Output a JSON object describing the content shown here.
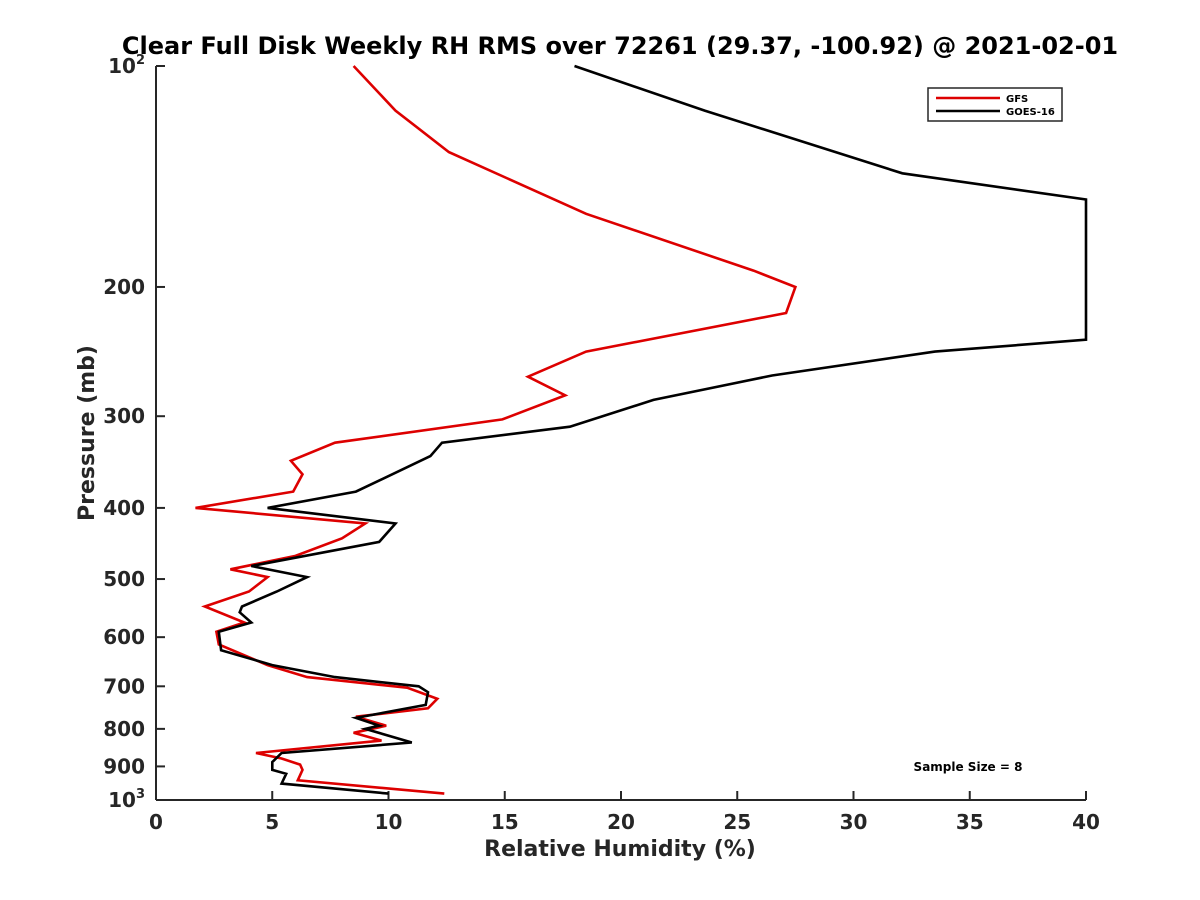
{
  "chart_data": {
    "type": "line",
    "title": "Clear Full Disk Weekly RH RMS over 72261 (29.37, -100.92) @ 2021-02-01",
    "xlabel": "Relative Humidity (%)",
    "ylabel": "Pressure (mb)",
    "xlim": [
      0,
      40
    ],
    "ylim": [
      100,
      1000
    ],
    "y_scale": "log",
    "y_reversed": true,
    "x_ticks": [
      0,
      5,
      10,
      15,
      20,
      25,
      30,
      35,
      40
    ],
    "y_ticks": [
      {
        "value": 100,
        "label": "10",
        "sup": "2"
      },
      {
        "value": 200,
        "label": "200"
      },
      {
        "value": 300,
        "label": "300"
      },
      {
        "value": 400,
        "label": "400"
      },
      {
        "value": 500,
        "label": "500"
      },
      {
        "value": 600,
        "label": "600"
      },
      {
        "value": 700,
        "label": "700"
      },
      {
        "value": 800,
        "label": "800"
      },
      {
        "value": 900,
        "label": "900"
      },
      {
        "value": 1000,
        "label": "10",
        "sup": "3"
      }
    ],
    "grid": false,
    "legend_position": "top-right",
    "series": [
      {
        "name": "GFS",
        "color": "#dd0000",
        "points": [
          [
            8.5,
            100
          ],
          [
            10.3,
            115
          ],
          [
            12.6,
            131
          ],
          [
            18.5,
            159
          ],
          [
            25.7,
            190
          ],
          [
            27.5,
            200
          ],
          [
            27.1,
            217
          ],
          [
            18.5,
            245
          ],
          [
            16.0,
            265
          ],
          [
            17.6,
            281
          ],
          [
            14.9,
            303
          ],
          [
            7.7,
            326
          ],
          [
            5.8,
            345
          ],
          [
            6.3,
            360
          ],
          [
            5.9,
            380
          ],
          [
            1.7,
            400
          ],
          [
            9.0,
            420
          ],
          [
            8.0,
            440
          ],
          [
            6.0,
            465
          ],
          [
            3.2,
            485
          ],
          [
            4.8,
            497
          ],
          [
            4.0,
            520
          ],
          [
            2.1,
            545
          ],
          [
            3.8,
            573
          ],
          [
            2.6,
            590
          ],
          [
            2.7,
            614
          ],
          [
            4.8,
            655
          ],
          [
            6.5,
            680
          ],
          [
            10.8,
            703
          ],
          [
            12.1,
            728
          ],
          [
            11.7,
            750
          ],
          [
            8.6,
            770
          ],
          [
            9.9,
            792
          ],
          [
            8.5,
            810
          ],
          [
            9.7,
            830
          ],
          [
            4.3,
            863
          ],
          [
            5.4,
            878
          ],
          [
            6.2,
            895
          ],
          [
            6.3,
            910
          ],
          [
            6.1,
            940
          ],
          [
            12.4,
            980
          ]
        ]
      },
      {
        "name": "GOES-16",
        "color": "#000000",
        "points": [
          [
            18.0,
            100
          ],
          [
            23.6,
            115
          ],
          [
            32.1,
            140
          ],
          [
            40.0,
            152
          ],
          [
            40.0,
            236
          ],
          [
            33.5,
            245
          ],
          [
            26.5,
            264
          ],
          [
            21.4,
            285
          ],
          [
            17.8,
            310
          ],
          [
            12.3,
            326
          ],
          [
            11.8,
            340
          ],
          [
            8.6,
            380
          ],
          [
            4.8,
            400
          ],
          [
            10.3,
            420
          ],
          [
            9.6,
            445
          ],
          [
            4.1,
            480
          ],
          [
            6.5,
            497
          ],
          [
            5.2,
            520
          ],
          [
            3.7,
            545
          ],
          [
            3.6,
            555
          ],
          [
            4.1,
            573
          ],
          [
            2.7,
            590
          ],
          [
            2.8,
            625
          ],
          [
            5.0,
            655
          ],
          [
            7.7,
            680
          ],
          [
            11.3,
            700
          ],
          [
            11.7,
            713
          ],
          [
            11.6,
            742
          ],
          [
            8.6,
            773
          ],
          [
            9.6,
            792
          ],
          [
            9.0,
            800
          ],
          [
            11.0,
            835
          ],
          [
            5.4,
            863
          ],
          [
            5.0,
            888
          ],
          [
            5.0,
            910
          ],
          [
            5.6,
            921
          ],
          [
            5.4,
            950
          ],
          [
            10.0,
            980
          ]
        ]
      }
    ],
    "annotation": "Sample Size = 8"
  }
}
